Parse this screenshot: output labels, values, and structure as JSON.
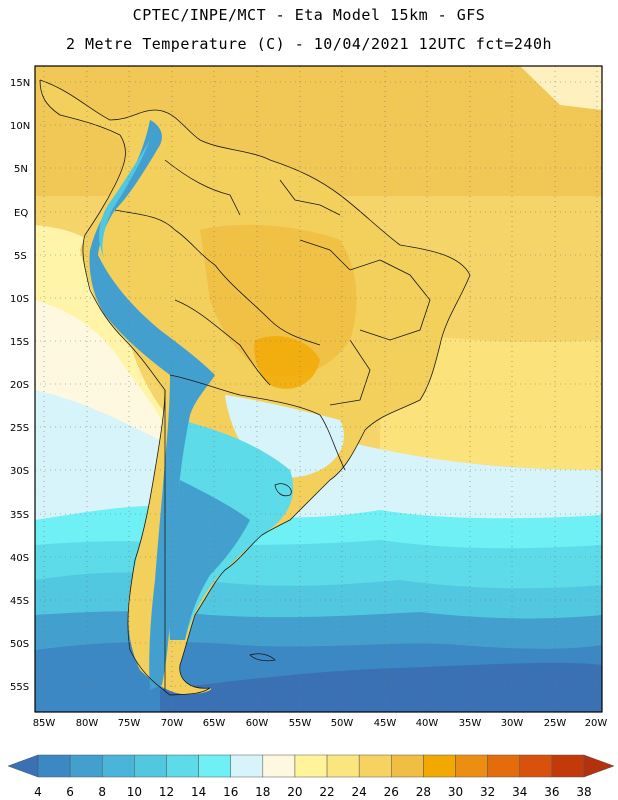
{
  "title_line1": "CPTEC/INPE/MCT -  Eta Model 15km - GFS",
  "title_line2": "2 Metre Temperature (C) - 10/04/2021 12UTC fct=240h",
  "lat_labels": [
    "15N",
    "10N",
    "5N",
    "EQ",
    "5S",
    "10S",
    "15S",
    "20S",
    "25S",
    "30S",
    "35S",
    "40S",
    "45S",
    "50S",
    "55S"
  ],
  "lon_labels": [
    "85W",
    "80W",
    "75W",
    "70W",
    "65W",
    "60W",
    "55W",
    "50W",
    "45W",
    "40W",
    "35W",
    "30W",
    "25W",
    "20W"
  ],
  "colorbar": {
    "values": [
      "4",
      "6",
      "8",
      "10",
      "12",
      "14",
      "16",
      "18",
      "20",
      "22",
      "24",
      "26",
      "28",
      "30",
      "32",
      "34",
      "36",
      "38"
    ],
    "colors": [
      "#3a70b4",
      "#3b88c4",
      "#43a0ce",
      "#4ab5d9",
      "#52c8e0",
      "#5ddbe8",
      "#6ef0f5",
      "#d7f4fb",
      "#fff8e0",
      "#fff49a",
      "#fbe57f",
      "#f6d261",
      "#f0be42",
      "#f3a800",
      "#ec8e12",
      "#e46c0c",
      "#d8520e",
      "#c23a0a",
      "#b3310c"
    ]
  }
}
